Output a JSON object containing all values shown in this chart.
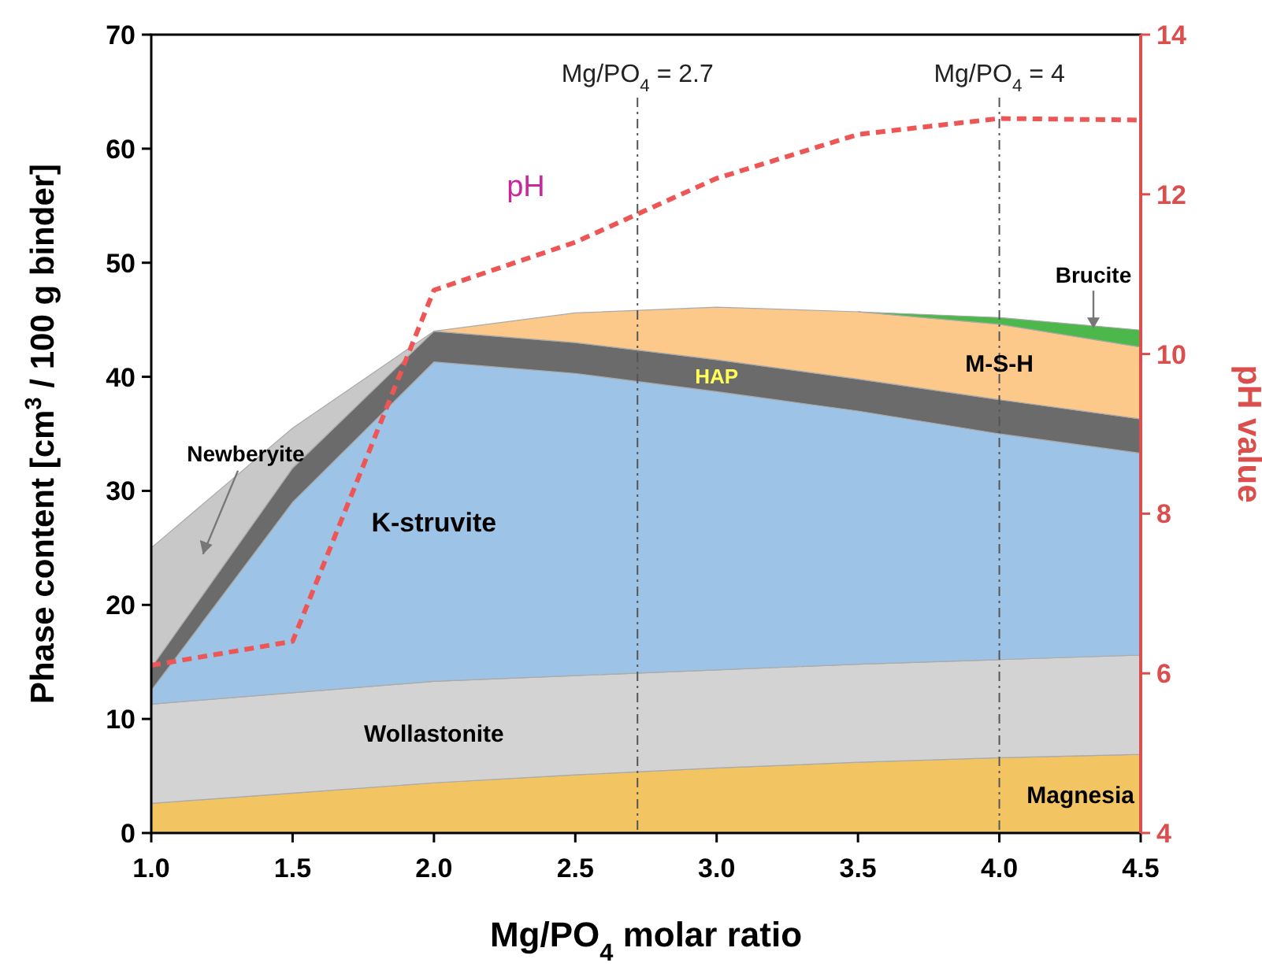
{
  "chart_data": {
    "type": "area",
    "stacked": true,
    "grid": false,
    "x": [
      1,
      1.5,
      2,
      2.5,
      3,
      3.5,
      4,
      4.5
    ],
    "xlabel": "Mg/PO$_{4}$ molar ratio",
    "ylabel": "Phase content [cm$^{3}$ / 100 g binder]",
    "y2label": "pH value",
    "xlim": [
      1,
      4.5
    ],
    "xticks": [
      {
        "value": 1,
        "label": "1.0"
      },
      {
        "value": 1.5,
        "label": "1.5"
      },
      {
        "value": 2,
        "label": "2.0"
      },
      {
        "value": 2.5,
        "label": "2.5"
      },
      {
        "value": 3,
        "label": "3.0"
      },
      {
        "value": 3.5,
        "label": "3.5"
      },
      {
        "value": 4,
        "label": "4.0"
      },
      {
        "value": 4.5,
        "label": "4.5"
      }
    ],
    "ylim": [
      0,
      70
    ],
    "yticks": [
      0,
      10,
      20,
      30,
      40,
      50,
      60,
      70
    ],
    "y2lim": [
      4,
      14
    ],
    "y2ticks": [
      4,
      6,
      8,
      10,
      12,
      14
    ],
    "series": [
      {
        "name": "Magnesia",
        "color": "#f2c462",
        "values": [
          2.6,
          3.5,
          4.4,
          5.1,
          5.7,
          6.2,
          6.6,
          6.9
        ]
      },
      {
        "name": "Wollastonite",
        "color": "#d3d3d3",
        "values": [
          8.7,
          8.8,
          8.9,
          8.7,
          8.6,
          8.6,
          8.6,
          8.7
        ]
      },
      {
        "name": "K-struvite",
        "color": "#9dc3e6",
        "values": [
          1.2,
          16.7,
          28.0,
          26.5,
          24.4,
          22.2,
          19.8,
          17.7
        ]
      },
      {
        "name": "HAP",
        "color": "#6b6b6b",
        "values": [
          2,
          3,
          2.7,
          2.7,
          2.8,
          2.8,
          3,
          3
        ]
      },
      {
        "name": "Newberyite",
        "color": "#c8c8c8",
        "values": [
          10.5,
          3.5,
          0,
          null,
          null,
          null,
          null,
          null
        ]
      },
      {
        "name": "M-S-H",
        "color": "#fcc98a",
        "values": [
          null,
          null,
          0,
          2.6,
          4.6,
          5.9,
          6.6,
          6.3
        ]
      },
      {
        "name": "Brucite",
        "color": "#4cb84c",
        "values": [
          null,
          null,
          null,
          null,
          null,
          0,
          0.6,
          1.5
        ]
      },
      {
        "name": "pH",
        "type": "line",
        "axis": "y2",
        "color": "#ee5555",
        "line_style": "dashed",
        "values": [
          6.1,
          6.4,
          10.8,
          11.4,
          12.2,
          12.75,
          12.95,
          12.93
        ]
      }
    ],
    "ref_lines": [
      {
        "axis": "x",
        "value": 2.72,
        "label": "Mg/PO$_{4}$ = 2.7",
        "color": "#555555",
        "line_style": "dashdot"
      },
      {
        "axis": "x",
        "value": 4,
        "label": "Mg/PO$_{4}$ = 4",
        "color": "#555555",
        "line_style": "dashdot"
      }
    ]
  }
}
